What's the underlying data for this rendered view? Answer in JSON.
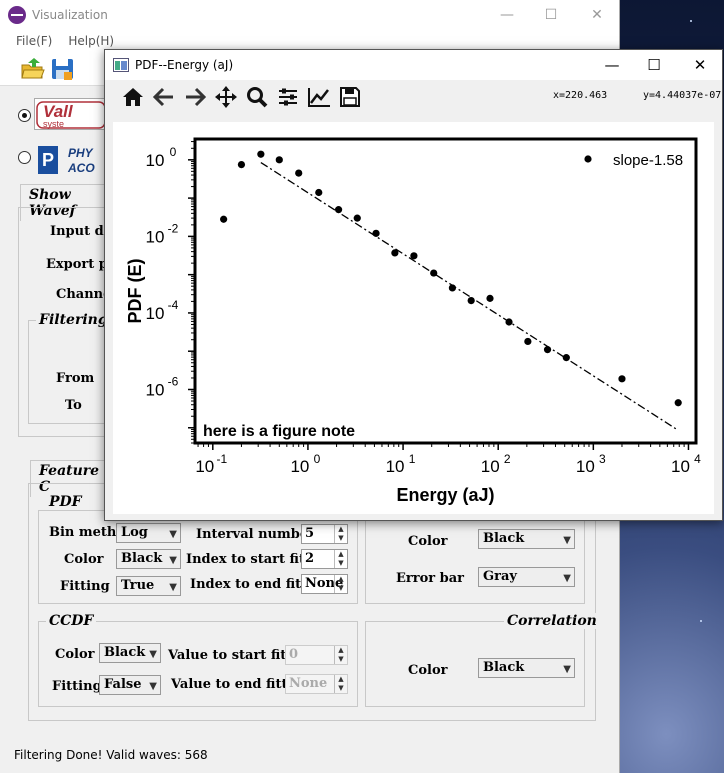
{
  "main_window": {
    "title": "Visualization",
    "menu": [
      "File(F)",
      "Help(H)"
    ],
    "logos": [
      "Vali systems",
      "PHYSICAL ACOUSTICS"
    ],
    "show_waveform_tab": "Show Wavef",
    "input_label": "Input da",
    "export_label": "Export pa",
    "channel_label": "Channe",
    "filtering_title": "Filtering P",
    "from_label": "From",
    "to_label": "To",
    "feature_tab": "Feature C",
    "status": "Filtering Done! Valid waves: 568"
  },
  "pdf_group": {
    "title": "PDF",
    "bin_method_label": "Bin method",
    "bin_method_value": "Log",
    "color_label": "Color",
    "color_value": "Black",
    "fitting_label": "Fitting",
    "fitting_value": "True",
    "interval_label": "Interval number",
    "interval_value": "5",
    "start_label": "Index to start fitting",
    "start_value": "2",
    "end_label": "Index to end fitting",
    "end_value": "None"
  },
  "right_group": {
    "color_label": "Color",
    "color_value": "Black",
    "errorbar_label": "Error bar",
    "errorbar_value": "Gray"
  },
  "ccdf_group": {
    "title": "CCDF",
    "color_label": "Color",
    "color_value": "Black",
    "fitting_label": "Fitting",
    "fitting_value": "False",
    "start_label": "Value to start fitting",
    "start_value": "0",
    "end_label": "Value to end fitting",
    "end_value": "None"
  },
  "correlation_group": {
    "title": "Correlation",
    "color_label": "Color",
    "color_value": "Black"
  },
  "plot_window": {
    "title": "PDF--Energy (aJ)",
    "coord_x": "x=220.463",
    "coord_y": "y=4.44037e-07"
  },
  "chart_data": {
    "type": "scatter",
    "xlabel": "Energy (aJ)",
    "ylabel": "PDF (E)",
    "xscale": "log",
    "yscale": "log",
    "xlim": [
      0.065,
      12000
    ],
    "ylim": [
      4e-08,
      3.5
    ],
    "x_ticks": [
      "10^-1",
      "10^0",
      "10^1",
      "10^2",
      "10^3",
      "10^4"
    ],
    "y_ticks": [
      "10^0",
      "10^-2",
      "10^-4",
      "10^-6"
    ],
    "legend": "slope-1.58",
    "legend_position": "top-right",
    "annotation": "here is a figure note",
    "series": [
      {
        "name": "slope-1.58",
        "x": [
          0.13,
          0.2,
          0.32,
          0.5,
          0.8,
          1.3,
          2.1,
          3.3,
          5.2,
          8.2,
          13,
          21,
          33,
          52,
          82,
          130,
          205,
          330,
          520,
          2000,
          7800
        ],
        "y": [
          0.028,
          0.75,
          1.4,
          1.0,
          0.45,
          0.14,
          0.05,
          0.03,
          0.012,
          0.0037,
          0.0031,
          0.0011,
          0.00045,
          0.00021,
          0.00024,
          5.8e-05,
          1.8e-05,
          1.1e-05,
          6.8e-06,
          1.9e-06,
          4.5e-07
        ]
      }
    ],
    "fit_line": {
      "x": [
        0.32,
        7800
      ],
      "y": [
        0.85,
        8.6e-08
      ]
    }
  }
}
